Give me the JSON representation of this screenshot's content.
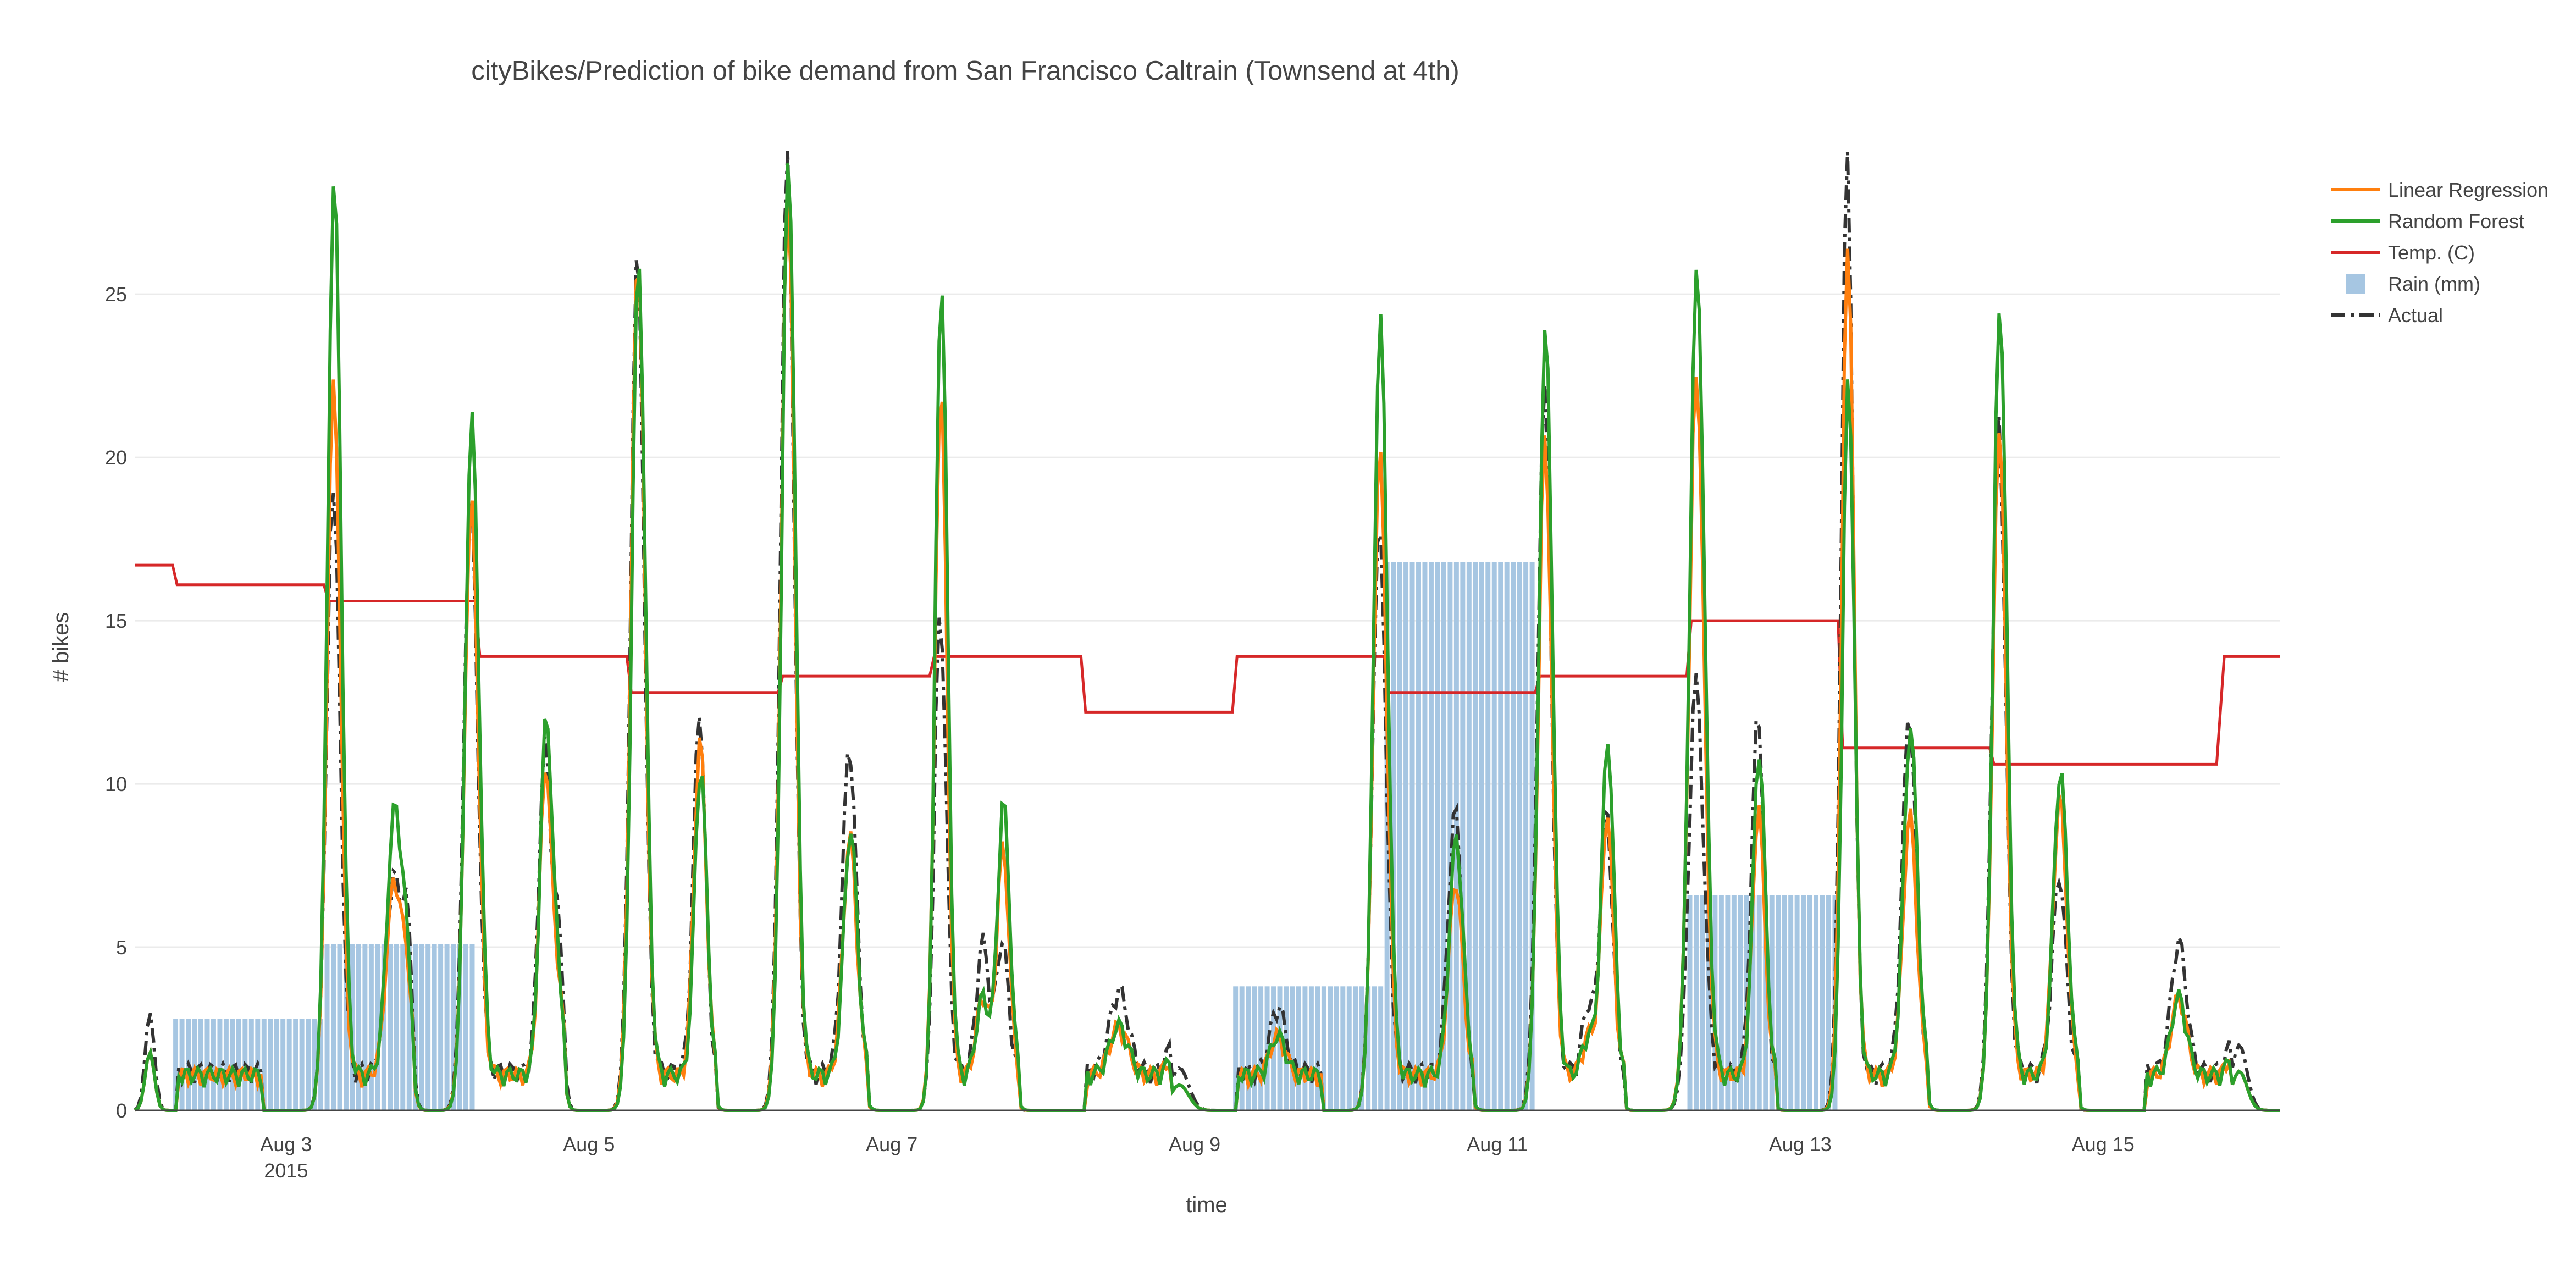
{
  "colors": {
    "linear_regression": "#ff7f0e",
    "random_forest": "#2ca02c",
    "temp": "#d62728",
    "rain": "#a6c6e2",
    "actual": "#333333",
    "grid": "#ebebeb",
    "text": "#444444"
  },
  "chart_data": {
    "type": "line",
    "title": "cityBikes/Prediction of bike demand from San Francisco Caltrain (Townsend at 4th)",
    "xlabel": "time",
    "ylabel": "# bikes",
    "x_range_days": [
      2.0,
      16.17
    ],
    "ylim": [
      0,
      28
    ],
    "y_ticks": [
      0,
      5,
      10,
      15,
      20,
      25
    ],
    "x_ticks": [
      {
        "day": 3,
        "label": "Aug 3",
        "sublabel": "2015"
      },
      {
        "day": 5,
        "label": "Aug 5"
      },
      {
        "day": 7,
        "label": "Aug 7"
      },
      {
        "day": 9,
        "label": "Aug 9"
      },
      {
        "day": 11,
        "label": "Aug 11"
      },
      {
        "day": 13,
        "label": "Aug 13"
      },
      {
        "day": 15,
        "label": "Aug 15"
      }
    ],
    "grid": true,
    "legend_position": "top-right",
    "legend": [
      {
        "key": "linear_regression",
        "label": "Linear Regression",
        "style": "line"
      },
      {
        "key": "random_forest",
        "label": "Random Forest",
        "style": "line"
      },
      {
        "key": "temp",
        "label": "Temp. (C)",
        "style": "line"
      },
      {
        "key": "rain",
        "label": "Rain (mm)",
        "style": "bar"
      },
      {
        "key": "actual",
        "label": "Actual",
        "style": "dashdot"
      }
    ],
    "temp_series": [
      [
        2.0,
        16.7
      ],
      [
        2.25,
        16.7
      ],
      [
        2.28,
        16.1
      ],
      [
        3.25,
        16.1
      ],
      [
        3.28,
        15.6
      ],
      [
        4.25,
        15.6
      ],
      [
        4.28,
        13.9
      ],
      [
        5.25,
        13.9
      ],
      [
        5.28,
        12.8
      ],
      [
        6.25,
        12.8
      ],
      [
        6.28,
        13.3
      ],
      [
        7.25,
        13.3
      ],
      [
        7.28,
        13.9
      ],
      [
        8.25,
        13.9
      ],
      [
        8.28,
        12.2
      ],
      [
        9.25,
        12.2
      ],
      [
        9.28,
        13.9
      ],
      [
        10.25,
        13.9
      ],
      [
        10.28,
        12.8
      ],
      [
        11.25,
        12.8
      ],
      [
        11.28,
        13.3
      ],
      [
        12.25,
        13.3
      ],
      [
        12.28,
        15.0
      ],
      [
        13.25,
        15.0
      ],
      [
        13.28,
        11.1
      ],
      [
        14.25,
        11.1
      ],
      [
        14.28,
        10.6
      ],
      [
        15.75,
        10.6
      ],
      [
        15.8,
        13.9
      ],
      [
        16.17,
        13.9
      ]
    ],
    "rain_blocks": [
      {
        "start": 2.25,
        "end": 3.25,
        "value": 2.8
      },
      {
        "start": 3.25,
        "end": 4.25,
        "value": 5.1
      },
      {
        "start": 9.25,
        "end": 10.25,
        "value": 3.8
      },
      {
        "start": 10.25,
        "end": 11.25,
        "value": 16.8
      },
      {
        "start": 12.25,
        "end": 13.25,
        "value": 6.6
      }
    ],
    "peaks": [
      {
        "day": 3.31,
        "w": 0.045,
        "act": 18.0,
        "rf": 27.4,
        "lr": 21.1
      },
      {
        "day": 3.71,
        "w": 0.05,
        "act": 6.0,
        "rf": 8.2,
        "lr": 6.0
      },
      {
        "day": 4.22,
        "w": 0.045,
        "act": 19.0,
        "rf": 21.4,
        "lr": 18.8
      },
      {
        "day": 4.71,
        "w": 0.04,
        "act": 10.0,
        "rf": 11.0,
        "lr": 9.5
      },
      {
        "day": 5.32,
        "w": 0.045,
        "act": 25.0,
        "rf": 24.9,
        "lr": 25.2
      },
      {
        "day": 5.73,
        "w": 0.04,
        "act": 11.0,
        "rf": 9.5,
        "lr": 10.3
      },
      {
        "day": 6.31,
        "w": 0.045,
        "act": 28.0,
        "rf": 28.0,
        "lr": 27.0
      },
      {
        "day": 6.72,
        "w": 0.045,
        "act": 10.0,
        "rf": 7.5,
        "lr": 7.3
      },
      {
        "day": 7.32,
        "w": 0.04,
        "act": 14.0,
        "rf": 24.3,
        "lr": 21.0
      },
      {
        "day": 7.73,
        "w": 0.04,
        "act": 4.0,
        "rf": 8.4,
        "lr": 7.0
      },
      {
        "day": 10.22,
        "w": 0.045,
        "act": 18.0,
        "rf": 24.4,
        "lr": 20.3
      },
      {
        "day": 10.72,
        "w": 0.045,
        "act": 8.0,
        "rf": 7.3,
        "lr": 6.0
      },
      {
        "day": 11.31,
        "w": 0.045,
        "act": 21.0,
        "rf": 22.8,
        "lr": 19.5
      },
      {
        "day": 11.72,
        "w": 0.04,
        "act": 8.0,
        "rf": 10.3,
        "lr": 8.0
      },
      {
        "day": 12.31,
        "w": 0.05,
        "act": 12.0,
        "rf": 24.6,
        "lr": 21.5
      },
      {
        "day": 12.72,
        "w": 0.04,
        "act": 11.0,
        "rf": 10.0,
        "lr": 8.2
      },
      {
        "day": 13.31,
        "w": 0.04,
        "act": 28.0,
        "rf": 21.4,
        "lr": 25.7
      },
      {
        "day": 13.72,
        "w": 0.045,
        "act": 11.0,
        "rf": 10.7,
        "lr": 8.0
      },
      {
        "day": 14.31,
        "w": 0.045,
        "act": 20.0,
        "rf": 23.6,
        "lr": 19.8
      },
      {
        "day": 14.71,
        "w": 0.045,
        "act": 6.0,
        "rf": 9.4,
        "lr": 8.5
      }
    ],
    "small_bumps": [
      {
        "day": 2.1,
        "w": 0.03,
        "v": 3.0
      },
      {
        "day": 3.8,
        "w": 0.03,
        "v": 4.0
      },
      {
        "day": 4.8,
        "w": 0.03,
        "v": 4.0
      },
      {
        "day": 7.6,
        "w": 0.04,
        "v": 4.0
      },
      {
        "day": 8.5,
        "w": 0.06,
        "v": 2.5
      },
      {
        "day": 8.9,
        "w": 0.06,
        "v": 1.3
      },
      {
        "day": 9.55,
        "w": 0.05,
        "v": 2.0
      },
      {
        "day": 11.6,
        "w": 0.04,
        "v": 2.0
      },
      {
        "day": 15.5,
        "w": 0.05,
        "v": 4.0
      },
      {
        "day": 15.9,
        "w": 0.05,
        "v": 2.0
      }
    ]
  }
}
